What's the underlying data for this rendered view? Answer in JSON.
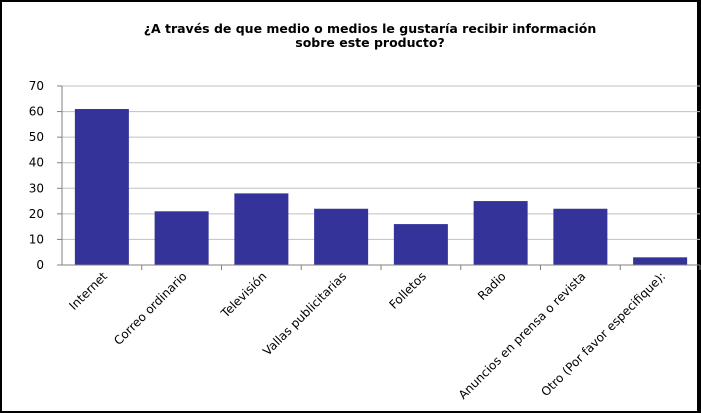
{
  "chart_data": {
    "type": "bar",
    "title": "¿A través de que medio o medios le gustaría recibir información\nsobre este producto?",
    "categories": [
      "Internet",
      "Correo ordinario",
      "Televisión",
      "Vallas publicitarias",
      "Folletos",
      "Radio",
      "Anuncios en prensa o revista",
      "Otro (Por favor especifique):"
    ],
    "values": [
      61,
      21,
      28,
      22,
      16,
      25,
      22,
      3
    ],
    "ylim": [
      0,
      70
    ],
    "yticks": [
      "0",
      "10",
      "20",
      "30",
      "40",
      "50",
      "60",
      "70"
    ],
    "grid": true,
    "legend": "none",
    "bar_color": "#333399",
    "grid_color": "#c0c0c0",
    "xlabel": "",
    "ylabel": ""
  }
}
